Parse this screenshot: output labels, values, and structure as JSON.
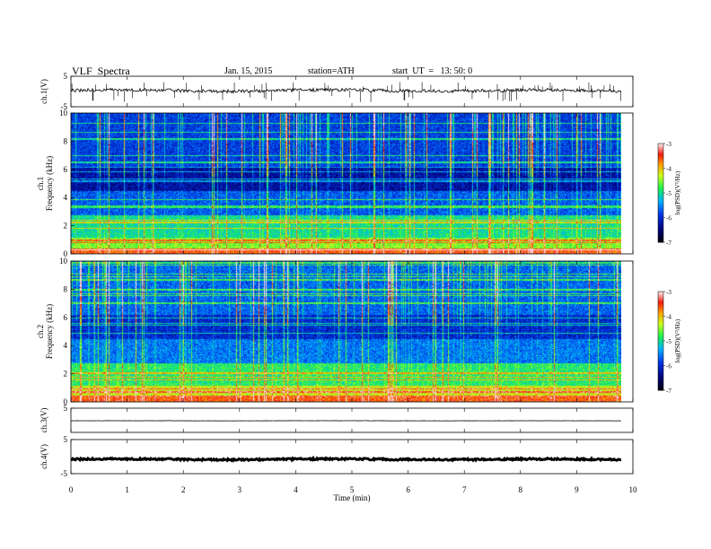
{
  "header": {
    "title": "VLF  Spectra",
    "date": "Jan. 15, 2015",
    "station": "station=ATH",
    "start": "start  UT  =   13: 50: 0"
  },
  "chart_data": {
    "type": "heatmap",
    "x": {
      "label": "Time  (min)",
      "range": [
        0,
        10
      ],
      "ticks": [
        0,
        1,
        2,
        3,
        4,
        5,
        6,
        7,
        8,
        9,
        10
      ],
      "data_end": 9.8
    },
    "panels": [
      {
        "id": "ch1-wave",
        "kind": "waveform",
        "ylabel": "ch.1(V)",
        "yrange": [
          -5,
          5
        ],
        "yticks": [
          {
            "v": 5,
            "t": "5"
          },
          {
            "v": -5,
            "t": "-5"
          }
        ],
        "level": 0.3,
        "noise": 0.55,
        "spike_count": 70
      },
      {
        "id": "ch1-spec",
        "kind": "spectrogram",
        "ylabel": "ch.1\nFrequency  (kHz)",
        "yrange": [
          0,
          10
        ],
        "yticks": [
          0,
          2,
          4,
          6,
          8,
          10
        ],
        "colorbar": {
          "label": "log(PSD)(V²/Hz)",
          "range": [
            -7,
            -3
          ],
          "ticks": [
            -7,
            -6,
            -5,
            -4,
            -3
          ]
        },
        "seed": 11,
        "intensity": 0.0
      },
      {
        "id": "ch2-spec",
        "kind": "spectrogram",
        "ylabel": "ch.2\nFrequency  (kHz)",
        "yrange": [
          0,
          10
        ],
        "yticks": [
          0,
          2,
          4,
          6,
          8,
          10
        ],
        "colorbar": {
          "label": "log(PSD)(V²/Hz)",
          "range": [
            -7,
            -3
          ],
          "ticks": [
            -7,
            -6,
            -5,
            -4,
            -3
          ]
        },
        "seed": 29,
        "intensity": 0.35
      },
      {
        "id": "ch3-wave",
        "kind": "waveform",
        "ylabel": "ch.3(V)",
        "yrange": [
          -5,
          5
        ],
        "yticks": [
          {
            "v": 5,
            "t": "5"
          }
        ],
        "level": -0.2,
        "noise": 0.05,
        "spike_count": 0
      },
      {
        "id": "ch4-wave",
        "kind": "waveform",
        "ylabel": "ch.4(V)",
        "yrange": [
          -5,
          5
        ],
        "yticks": [
          {
            "v": 5,
            "t": "5"
          },
          {
            "v": -5,
            "t": "-5"
          }
        ],
        "level": -0.8,
        "noise": 0.25,
        "spike_count": 0
      }
    ]
  }
}
